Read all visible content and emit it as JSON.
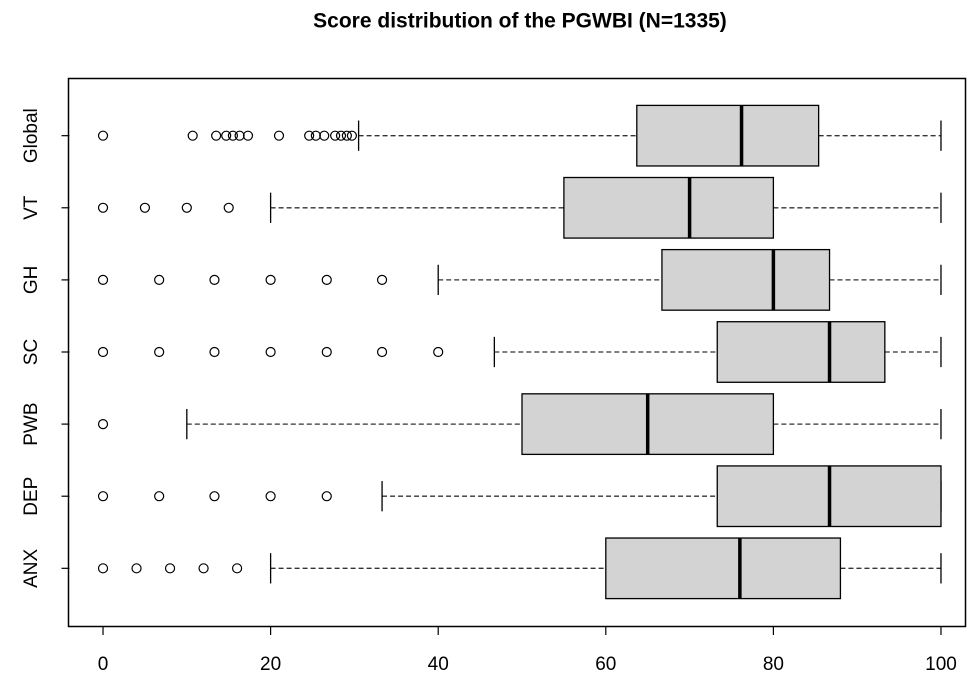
{
  "chart_data": {
    "type": "boxplot",
    "title": "Score distribution of the PGWBI (N=1335)",
    "orientation": "horizontal",
    "box_color": "#d3d3d3",
    "xlim": [
      -4,
      104
    ],
    "xticks": [
      0,
      20,
      40,
      60,
      80,
      100
    ],
    "series": [
      {
        "name": "ANX",
        "whisker_low": 20,
        "q1": 60,
        "median": 76,
        "q3": 88,
        "whisker_high": 100,
        "outliers": [
          0,
          4,
          8,
          12,
          16
        ]
      },
      {
        "name": "DEP",
        "whisker_low": 33.3,
        "q1": 73.3,
        "median": 86.7,
        "q3": 100,
        "whisker_high": 100,
        "outliers": [
          0,
          6.7,
          13.3,
          20,
          26.7
        ]
      },
      {
        "name": "PWB",
        "whisker_low": 10,
        "q1": 50,
        "median": 65,
        "q3": 80,
        "whisker_high": 100,
        "outliers": [
          0
        ]
      },
      {
        "name": "SC",
        "whisker_low": 46.7,
        "q1": 73.3,
        "median": 86.7,
        "q3": 93.3,
        "whisker_high": 100,
        "outliers": [
          0,
          6.7,
          13.3,
          20,
          26.7,
          33.3,
          40
        ]
      },
      {
        "name": "GH",
        "whisker_low": 40,
        "q1": 66.7,
        "median": 80,
        "q3": 86.7,
        "whisker_high": 100,
        "outliers": [
          0,
          6.7,
          13.3,
          20,
          26.7,
          33.3
        ]
      },
      {
        "name": "VT",
        "whisker_low": 20,
        "q1": 55,
        "median": 70,
        "q3": 80,
        "whisker_high": 100,
        "outliers": [
          0,
          5,
          10,
          15
        ]
      },
      {
        "name": "Global",
        "whisker_low": 30.5,
        "q1": 63.7,
        "median": 76.2,
        "q3": 85.4,
        "whisker_high": 100,
        "outliers": [
          0,
          10.7,
          13.5,
          14.7,
          15.5,
          16.3,
          17.3,
          21,
          24.6,
          25.4,
          26.4,
          27.7,
          28.4,
          29.1,
          29.7
        ]
      }
    ]
  }
}
